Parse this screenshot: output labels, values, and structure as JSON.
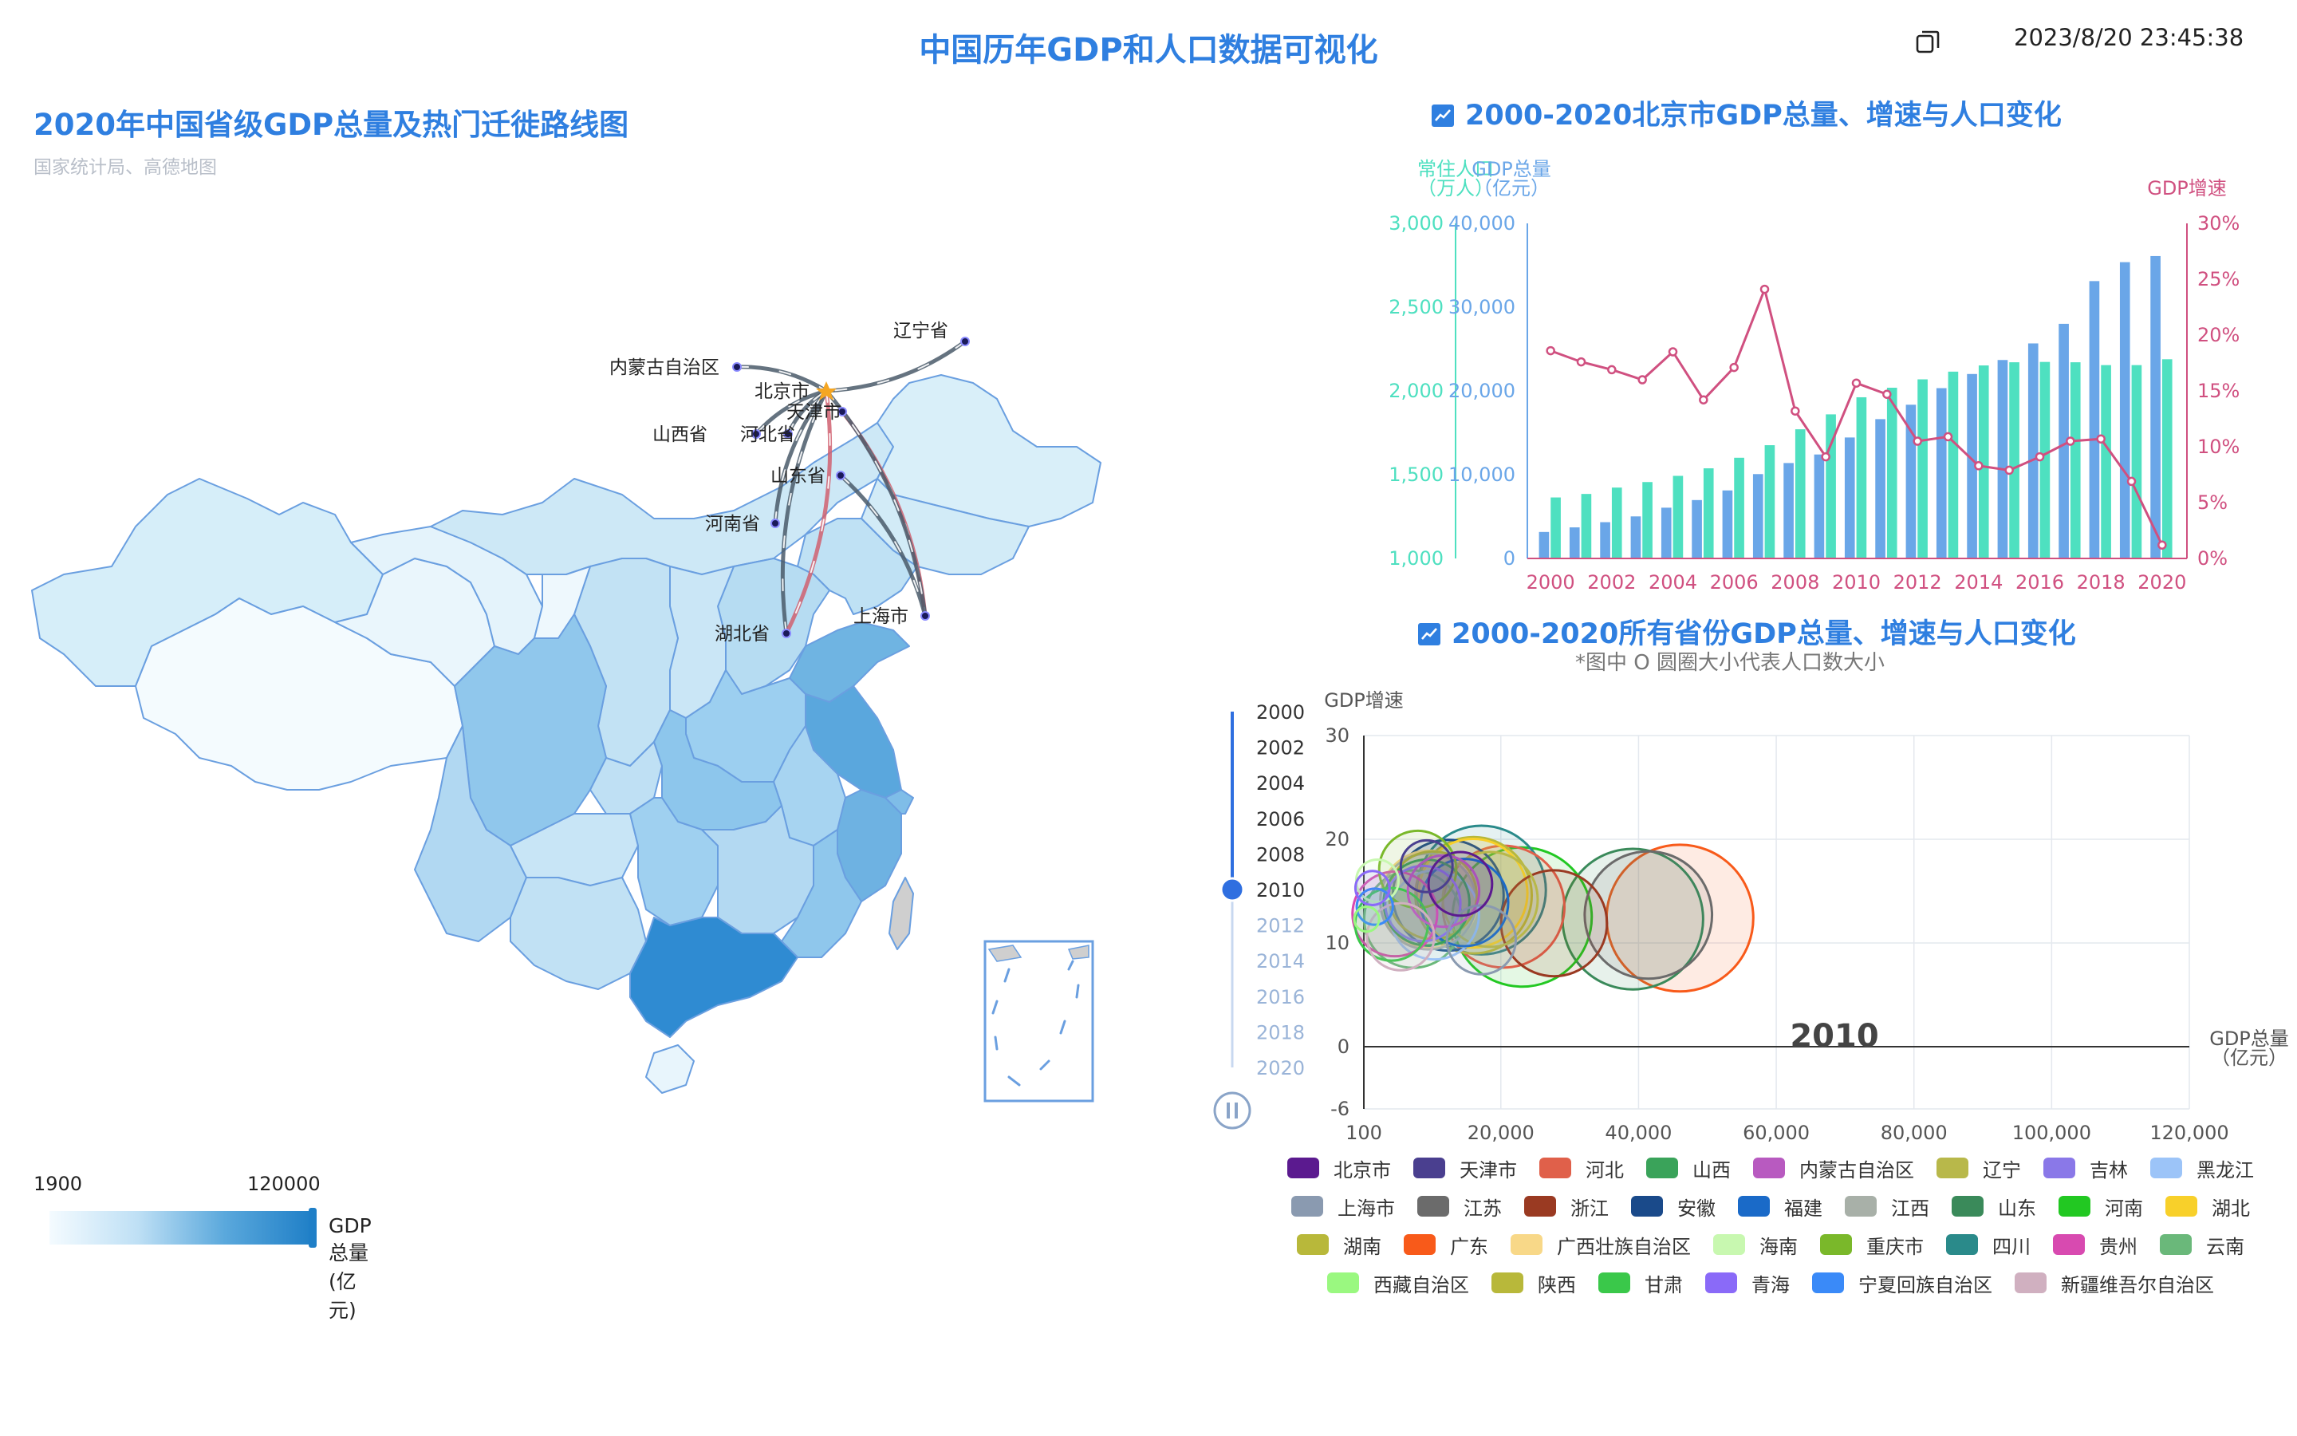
{
  "header": {
    "title": "中国历年GDP和人口数据可视化",
    "datetime": "2023/8/20 23:45:38"
  },
  "map": {
    "title": "2020年中国省级GDP总量及热门迁徙路线图",
    "subtitle": "国家统计局、高德地图",
    "visual_map": {
      "min": "1900",
      "max": "120000",
      "label": "GDP总量(亿元)"
    },
    "city_labels": [
      "内蒙古自治区",
      "北京市",
      "天津市",
      "辽宁省",
      "山西省",
      "河北省",
      "山东省",
      "河南省",
      "上海市",
      "湖北省"
    ]
  },
  "beijing_chart": {
    "title": "2000-2020北京市GDP总量、增速与人口变化",
    "axis_pop_label": [
      "常住人口",
      "（万人）"
    ],
    "axis_gdp_label": [
      "GDP总量",
      "（亿元）"
    ],
    "axis_rate_label": "GDP增速",
    "pop_ticks": [
      "3,000",
      "2,500",
      "2,000",
      "1,500",
      "1,000"
    ],
    "gdp_ticks": [
      "40,000",
      "30,000",
      "20,000",
      "10,000",
      "0"
    ],
    "rate_ticks": [
      "30%",
      "25%",
      "20%",
      "15%",
      "10%",
      "5%",
      "0%"
    ],
    "x_ticks": [
      "2000",
      "2002",
      "2004",
      "2006",
      "2008",
      "2010",
      "2012",
      "2014",
      "2016",
      "2018",
      "2020"
    ]
  },
  "bubble_chart": {
    "title": "2000-2020所有省份GDP总量、增速与人口变化",
    "note": "*图中 O 圆圈大小代表人口数大小",
    "y_label": "GDP增速",
    "x_label": [
      "GDP总量",
      "（亿元）"
    ],
    "y_ticks": [
      "30",
      "20",
      "10",
      "0",
      "-6"
    ],
    "x_ticks": [
      "100",
      "20,000",
      "40,000",
      "60,000",
      "80,000",
      "100,000",
      "120,000"
    ],
    "current_year": "2010",
    "timeline_years": [
      "2000",
      "2002",
      "2004",
      "2006",
      "2008",
      "2010",
      "2012",
      "2014",
      "2016",
      "2018",
      "2020"
    ]
  },
  "legend_rows": [
    [
      [
        "北京市",
        "#5b1a8f"
      ],
      [
        "天津市",
        "#4a3f8f"
      ],
      [
        "河北",
        "#e0604a"
      ],
      [
        "山西",
        "#3aa35a"
      ],
      [
        "内蒙古自治区",
        "#b85ac0"
      ],
      [
        "辽宁",
        "#b8b84a"
      ],
      [
        "吉林",
        "#8a78e8"
      ],
      [
        "黑龙江",
        "#9cc4f8"
      ]
    ],
    [
      [
        "上海市",
        "#8a9ab0"
      ],
      [
        "江苏",
        "#6b6b6b"
      ],
      [
        "浙江",
        "#9a3a22"
      ],
      [
        "安徽",
        "#1a4a8a"
      ],
      [
        "福建",
        "#1a6ac8"
      ],
      [
        "江西",
        "#a8b0a8"
      ],
      [
        "山东",
        "#3a8a5a"
      ],
      [
        "河南",
        "#22c822"
      ],
      [
        "湖北",
        "#f8d02a"
      ]
    ],
    [
      [
        "湖南",
        "#b8b83a"
      ],
      [
        "广东",
        "#f85a1a"
      ],
      [
        "广西壮族自治区",
        "#f8d888"
      ],
      [
        "海南",
        "#c8f8b0"
      ],
      [
        "重庆市",
        "#7ab82a"
      ],
      [
        "四川",
        "#2a8a8a"
      ],
      [
        "贵州",
        "#d84ab0"
      ],
      [
        "云南",
        "#6ab87a"
      ]
    ],
    [
      [
        "西藏自治区",
        "#9af880"
      ],
      [
        "陕西",
        "#b8b83a"
      ],
      [
        "甘肃",
        "#3ac84a"
      ],
      [
        "青海",
        "#8a6af8"
      ],
      [
        "宁夏回族自治区",
        "#3a8af8"
      ],
      [
        "新疆维吾尔自治区",
        "#d0b0c0"
      ]
    ]
  ],
  "chart_data": [
    {
      "type": "bar",
      "title": "2000-2020北京市GDP总量、增速与人口变化",
      "x": [
        "2000",
        "2001",
        "2002",
        "2003",
        "2004",
        "2005",
        "2006",
        "2007",
        "2008",
        "2009",
        "2010",
        "2011",
        "2012",
        "2013",
        "2014",
        "2015",
        "2016",
        "2017",
        "2018",
        "2019",
        "2020"
      ],
      "series": [
        {
          "name": "GDP总量",
          "axis": "亿元",
          "type": "bar",
          "color": "#6aa6e8",
          "values": [
            3160,
            3710,
            4330,
            5020,
            6060,
            6970,
            8120,
            10070,
            11390,
            12410,
            14440,
            16630,
            18350,
            20330,
            22020,
            23690,
            25670,
            28010,
            33110,
            35370,
            36100
          ]
        },
        {
          "name": "常住人口",
          "axis": "万人",
          "type": "bar",
          "color": "#4ee0c0",
          "values": [
            1364,
            1385,
            1423,
            1456,
            1493,
            1538,
            1601,
            1676,
            1771,
            1860,
            1962,
            2019,
            2069,
            2115,
            2152,
            2171,
            2173,
            2171,
            2154,
            2154,
            2189
          ]
        },
        {
          "name": "GDP增速",
          "axis": "%",
          "type": "line",
          "color": "#d05080",
          "values": [
            18.6,
            17.6,
            16.9,
            16.0,
            18.5,
            14.2,
            17.1,
            24.1,
            13.2,
            9.1,
            15.7,
            14.7,
            10.5,
            10.9,
            8.3,
            7.9,
            9.1,
            10.5,
            10.7,
            6.9,
            1.2
          ]
        }
      ],
      "ylim_gdp": [
        0,
        40000
      ],
      "ylim_pop": [
        1000,
        3000
      ],
      "ylim_rate": [
        0,
        30
      ]
    },
    {
      "type": "scatter",
      "title": "2000-2020所有省份GDP总量、增速与人口变化",
      "frame": "2010",
      "xlim": [
        100,
        120000
      ],
      "ylim": [
        -6,
        30
      ],
      "points": [
        {
          "name": "北京市",
          "x": 14114,
          "y": 15.7,
          "pop": 1962
        },
        {
          "name": "天津市",
          "x": 9224,
          "y": 17.4,
          "pop": 1299
        },
        {
          "name": "河北",
          "x": 20394,
          "y": 13.5,
          "pop": 7194
        },
        {
          "name": "山西",
          "x": 9201,
          "y": 13.9,
          "pop": 3574
        },
        {
          "name": "内蒙古自治区",
          "x": 11672,
          "y": 15.0,
          "pop": 2472
        },
        {
          "name": "辽宁",
          "x": 18457,
          "y": 14.2,
          "pop": 4375
        },
        {
          "name": "吉林",
          "x": 8668,
          "y": 13.8,
          "pop": 2747
        },
        {
          "name": "黑龙江",
          "x": 10369,
          "y": 12.7,
          "pop": 3833
        },
        {
          "name": "上海市",
          "x": 17166,
          "y": 10.3,
          "pop": 2303
        },
        {
          "name": "江苏",
          "x": 41425,
          "y": 12.7,
          "pop": 7869
        },
        {
          "name": "浙江",
          "x": 27722,
          "y": 11.9,
          "pop": 5447
        },
        {
          "name": "安徽",
          "x": 12359,
          "y": 14.6,
          "pop": 5957
        },
        {
          "name": "福建",
          "x": 14737,
          "y": 13.9,
          "pop": 3693
        },
        {
          "name": "江西",
          "x": 9451,
          "y": 14.0,
          "pop": 4462
        },
        {
          "name": "山东",
          "x": 39170,
          "y": 12.3,
          "pop": 9588
        },
        {
          "name": "河南",
          "x": 23092,
          "y": 12.5,
          "pop": 9405
        },
        {
          "name": "湖北",
          "x": 15968,
          "y": 14.8,
          "pop": 5728
        },
        {
          "name": "湖南",
          "x": 16038,
          "y": 14.6,
          "pop": 6570
        },
        {
          "name": "广东",
          "x": 46013,
          "y": 12.4,
          "pop": 10441
        },
        {
          "name": "广西壮族自治区",
          "x": 9569,
          "y": 14.2,
          "pop": 4610
        },
        {
          "name": "海南",
          "x": 2065,
          "y": 16.0,
          "pop": 869
        },
        {
          "name": "重庆市",
          "x": 7925,
          "y": 17.1,
          "pop": 2885
        },
        {
          "name": "四川",
          "x": 17185,
          "y": 15.1,
          "pop": 8045
        },
        {
          "name": "贵州",
          "x": 4602,
          "y": 12.8,
          "pop": 3479
        },
        {
          "name": "云南",
          "x": 7224,
          "y": 12.3,
          "pop": 4602
        },
        {
          "name": "西藏自治区",
          "x": 507,
          "y": 12.3,
          "pop": 300
        },
        {
          "name": "陕西",
          "x": 10123,
          "y": 14.6,
          "pop": 3735
        },
        {
          "name": "甘肃",
          "x": 4120,
          "y": 11.8,
          "pop": 2560
        },
        {
          "name": "青海",
          "x": 1350,
          "y": 15.3,
          "pop": 563
        },
        {
          "name": "宁夏回族自治区",
          "x": 1690,
          "y": 13.5,
          "pop": 633
        },
        {
          "name": "新疆维吾尔自治区",
          "x": 5437,
          "y": 10.6,
          "pop": 2185
        }
      ]
    }
  ]
}
